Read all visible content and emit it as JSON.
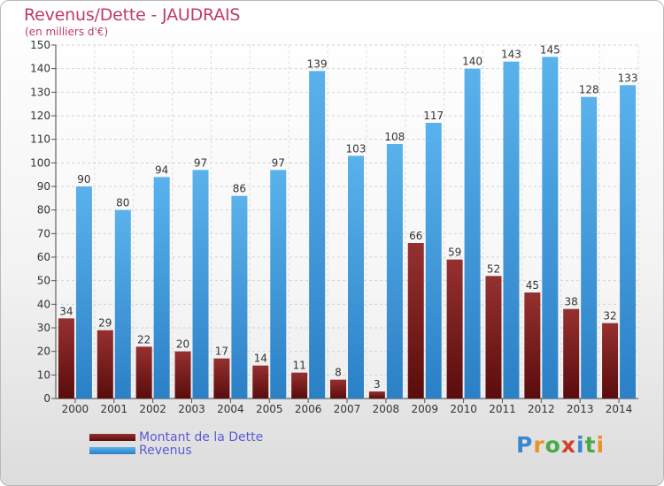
{
  "title": "Revenus/Dette - JAUDRAIS",
  "subtitle": "(en milliers d'€)",
  "logo": "Proxiti",
  "colors": {
    "dette": "#7a1c1c",
    "revenus": "#3a98dd",
    "title": "#c03a6a",
    "legend_text": "#5a5ad8"
  },
  "chart_data": {
    "type": "bar",
    "categories": [
      "2000",
      "2001",
      "2002",
      "2003",
      "2004",
      "2005",
      "2006",
      "2007",
      "2008",
      "2009",
      "2010",
      "2011",
      "2012",
      "2013",
      "2014"
    ],
    "series": [
      {
        "name": "Montant de la Dette",
        "values": [
          34,
          29,
          22,
          20,
          17,
          14,
          11,
          8,
          3,
          66,
          59,
          52,
          45,
          38,
          32
        ]
      },
      {
        "name": "Revenus",
        "values": [
          90,
          80,
          94,
          97,
          86,
          97,
          139,
          103,
          108,
          117,
          140,
          143,
          145,
          128,
          133
        ]
      }
    ],
    "ylim": [
      0,
      150
    ],
    "yticks": [
      0,
      10,
      20,
      30,
      40,
      50,
      60,
      70,
      80,
      90,
      100,
      110,
      120,
      130,
      140,
      150
    ],
    "grid": true,
    "legend": "bottom-left"
  }
}
